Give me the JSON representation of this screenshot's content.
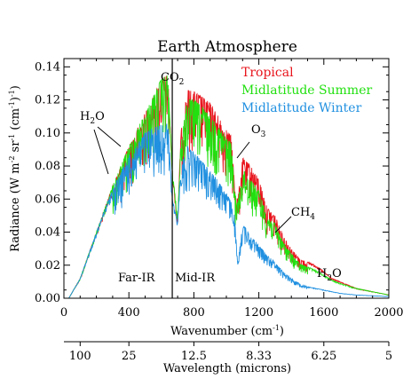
{
  "chart_data": {
    "type": "line",
    "title": "Earth Atmosphere",
    "xlabel": {
      "text": "Wavenumber (cm",
      "sup": "-1",
      "close": ")"
    },
    "ylabel": {
      "p1": "Radiance (W m",
      "sup1": "-2",
      "p2": " sr",
      "sup2": "-1",
      "p3": " (cm",
      "sup3": "-1",
      "p4": ")",
      "sup4": "-1",
      "p5": ")"
    },
    "xlim": [
      0,
      2000
    ],
    "ylim": [
      0,
      0.145
    ],
    "xticks": [
      0,
      400,
      800,
      1200,
      1600,
      2000
    ],
    "yticks": [
      0.0,
      0.02,
      0.04,
      0.06,
      0.08,
      0.1,
      0.12,
      0.14
    ],
    "ytick_labels": [
      "0.00",
      "0.02",
      "0.04",
      "0.06",
      "0.08",
      "0.10",
      "0.12",
      "0.14"
    ],
    "grid": false,
    "legend_position": "top-right",
    "series": [
      {
        "name": "Tropical",
        "color": "#e8141c",
        "x": [
          30,
          100,
          200,
          300,
          400,
          500,
          550,
          600,
          640,
          667,
          700,
          720,
          760,
          800,
          850,
          900,
          950,
          1000,
          1030,
          1050,
          1070,
          1100,
          1150,
          1200,
          1250,
          1300,
          1350,
          1400,
          1450,
          1500,
          1550,
          1600,
          1650,
          1700,
          1800,
          1900,
          2000
        ],
        "y": [
          0.0,
          0.012,
          0.04,
          0.068,
          0.092,
          0.112,
          0.122,
          0.133,
          0.135,
          0.078,
          0.045,
          0.1,
          0.126,
          0.125,
          0.122,
          0.118,
          0.11,
          0.102,
          0.098,
          0.07,
          0.06,
          0.085,
          0.08,
          0.072,
          0.055,
          0.05,
          0.038,
          0.03,
          0.024,
          0.022,
          0.02,
          0.016,
          0.012,
          0.01,
          0.006,
          0.004,
          0.002
        ]
      },
      {
        "name": "Midlatitude Summer",
        "color": "#22e010",
        "x": [
          30,
          100,
          200,
          300,
          400,
          500,
          550,
          600,
          640,
          667,
          700,
          720,
          760,
          800,
          850,
          900,
          950,
          1000,
          1030,
          1050,
          1070,
          1100,
          1150,
          1200,
          1250,
          1300,
          1350,
          1400,
          1450,
          1500,
          1550,
          1600,
          1650,
          1700,
          1800,
          1900,
          2000
        ],
        "y": [
          0.0,
          0.012,
          0.04,
          0.068,
          0.092,
          0.112,
          0.122,
          0.133,
          0.135,
          0.078,
          0.048,
          0.095,
          0.12,
          0.12,
          0.116,
          0.11,
          0.104,
          0.097,
          0.094,
          0.065,
          0.058,
          0.078,
          0.072,
          0.065,
          0.05,
          0.045,
          0.034,
          0.027,
          0.021,
          0.019,
          0.017,
          0.014,
          0.011,
          0.009,
          0.006,
          0.004,
          0.002
        ]
      },
      {
        "name": "Midlatitude Winter",
        "color": "#2090e0",
        "x": [
          30,
          100,
          200,
          300,
          400,
          500,
          550,
          600,
          640,
          667,
          700,
          720,
          760,
          800,
          850,
          900,
          950,
          1000,
          1030,
          1050,
          1070,
          1100,
          1150,
          1200,
          1250,
          1300,
          1350,
          1400,
          1450,
          1500,
          1550,
          1600,
          1650,
          1700,
          1800,
          1900,
          2000
        ],
        "y": [
          0.0,
          0.012,
          0.04,
          0.066,
          0.086,
          0.1,
          0.103,
          0.105,
          0.106,
          0.06,
          0.046,
          0.08,
          0.092,
          0.088,
          0.083,
          0.077,
          0.071,
          0.064,
          0.058,
          0.05,
          0.02,
          0.045,
          0.038,
          0.032,
          0.026,
          0.022,
          0.016,
          0.012,
          0.009,
          0.007,
          0.006,
          0.005,
          0.004,
          0.003,
          0.002,
          0.0015,
          0.001
        ]
      }
    ],
    "vline": {
      "x": 667
    },
    "annotations": [
      {
        "id": "h2o-left",
        "base": "H",
        "sub": "2",
        "rest": "O"
      },
      {
        "id": "co2",
        "base": "CO",
        "sub": "2",
        "rest": ""
      },
      {
        "id": "o3",
        "base": "O",
        "sub": "3",
        "rest": ""
      },
      {
        "id": "ch4",
        "base": "CH",
        "sub": "4",
        "rest": ""
      },
      {
        "id": "h2o-right",
        "base": "H",
        "sub": "2",
        "rest": "O"
      }
    ],
    "region_labels": {
      "far_ir": "Far-IR",
      "mid_ir": "Mid-IR"
    },
    "secondary_axis": {
      "label": "Wavelength (microns)",
      "ticks": [
        {
          "label": "100",
          "wavenumber": 100
        },
        {
          "label": "25",
          "wavenumber": 400
        },
        {
          "label": "12.5",
          "wavenumber": 800
        },
        {
          "label": "8.33",
          "wavenumber": 1200
        },
        {
          "label": "6.25",
          "wavenumber": 1600
        },
        {
          "label": "5",
          "wavenumber": 2000
        }
      ]
    }
  }
}
